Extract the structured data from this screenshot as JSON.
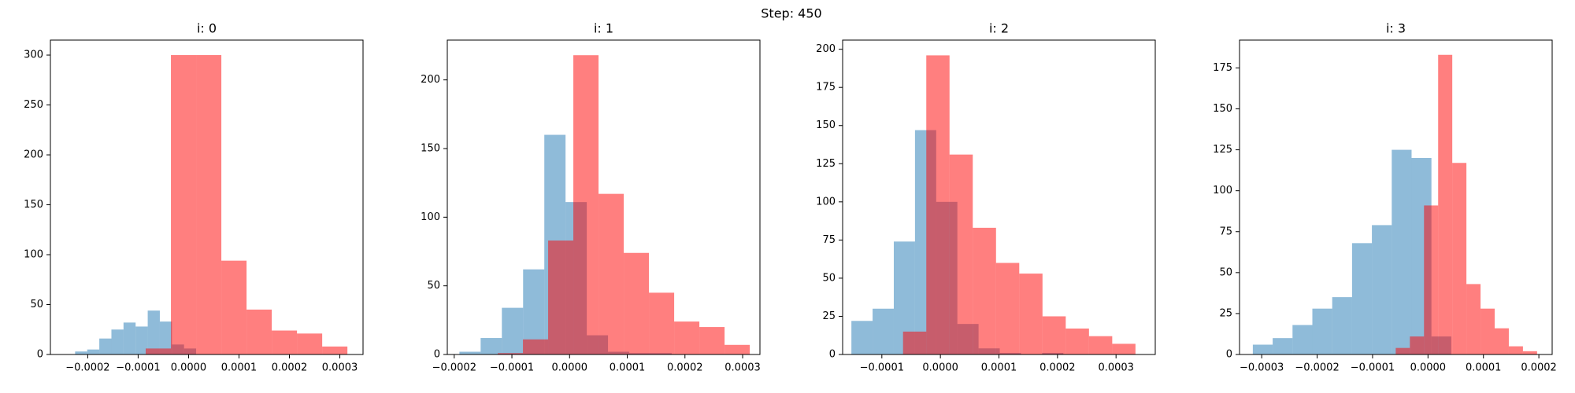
{
  "title": "Step: 450",
  "chart_data": [
    {
      "type": "histogram",
      "title": "i: 0",
      "xlim": [
        -0.000274,
        0.000346
      ],
      "ylim": [
        0,
        315
      ],
      "xticks": [
        {
          "value": -0.0002,
          "label": "−0.0002"
        },
        {
          "value": -0.0001,
          "label": "−0.0001"
        },
        {
          "value": 0,
          "label": "0.0000"
        },
        {
          "value": 0.0001,
          "label": "0.0001"
        },
        {
          "value": 0.0002,
          "label": "0.0002"
        },
        {
          "value": 0.0003,
          "label": "0.0003"
        }
      ],
      "yticks": [
        0,
        50,
        100,
        150,
        200,
        250,
        300
      ],
      "series": [
        {
          "color": "#1f77b4",
          "opacity": 0.5,
          "bins": [
            -0.000225,
            -0.000201,
            -0.000177,
            -0.000153,
            -0.000129,
            -0.000105,
            -8.1e-05,
            -5.7e-05,
            -3.3e-05,
            -9e-06,
            1.5e-05
          ],
          "values": [
            3,
            5,
            16,
            25,
            32,
            28,
            44,
            33,
            10,
            6
          ]
        },
        {
          "color": "#ff0000",
          "opacity": 0.5,
          "bins": [
            -8.5e-05,
            -3.5e-05,
            1.5e-05,
            6.5e-05,
            0.000115,
            0.000165,
            0.000215,
            0.000265,
            0.000315
          ],
          "values": [
            6,
            300,
            300,
            94,
            45,
            24,
            21,
            8
          ]
        }
      ]
    },
    {
      "type": "histogram",
      "title": "i: 1",
      "xlim": [
        -0.000212,
        0.00033
      ],
      "ylim": [
        0,
        229
      ],
      "xticks": [
        {
          "value": -0.0002,
          "label": "−0.0002"
        },
        {
          "value": -0.0001,
          "label": "−0.0001"
        },
        {
          "value": 0,
          "label": "0.0000"
        },
        {
          "value": 0.0001,
          "label": "0.0001"
        },
        {
          "value": 0.0002,
          "label": "0.0002"
        },
        {
          "value": 0.0003,
          "label": "0.0003"
        }
      ],
      "yticks": [
        0,
        50,
        100,
        150,
        200
      ],
      "series": [
        {
          "color": "#1f77b4",
          "opacity": 0.5,
          "bins": [
            -0.000191,
            -0.0001542,
            -0.0001174,
            -8.06e-05,
            -4.38e-05,
            -7e-06,
            2.98e-05,
            6.66e-05,
            0.0001034,
            0.0001402,
            0.000177
          ],
          "values": [
            2,
            12,
            34,
            62,
            160,
            111,
            14,
            2,
            1,
            1
          ]
        },
        {
          "color": "#ff0000",
          "opacity": 0.5,
          "bins": [
            -0.0001246,
            -8.09e-05,
            -3.72e-05,
            6.5e-06,
            5.02e-05,
            9.39e-05,
            0.0001376,
            0.0001813,
            0.000225,
            0.0002687,
            0.0003124
          ],
          "values": [
            1,
            11,
            83,
            218,
            117,
            74,
            45,
            24,
            20,
            7
          ]
        }
      ]
    },
    {
      "type": "histogram",
      "title": "i: 2",
      "xlim": [
        -0.000167,
        0.000367
      ],
      "ylim": [
        0,
        206
      ],
      "xticks": [
        {
          "value": -0.0001,
          "label": "−0.0001"
        },
        {
          "value": 0,
          "label": "0.0000"
        },
        {
          "value": 0.0001,
          "label": "0.0001"
        },
        {
          "value": 0.0002,
          "label": "0.0002"
        },
        {
          "value": 0.0003,
          "label": "0.0003"
        }
      ],
      "yticks": [
        0,
        25,
        50,
        75,
        100,
        125,
        150,
        175,
        200
      ],
      "series": [
        {
          "color": "#1f77b4",
          "opacity": 0.5,
          "bins": [
            -0.000152,
            -0.0001158,
            -7.96e-05,
            -4.34e-05,
            -7.2e-06,
            2.9e-05,
            6.52e-05,
            0.0001014,
            0.0001376,
            0.0001738,
            0.00021
          ],
          "values": [
            22,
            30,
            74,
            147,
            100,
            20,
            4,
            1,
            0,
            1
          ]
        },
        {
          "color": "#ff0000",
          "opacity": 0.5,
          "bins": [
            -6.38e-05,
            -2.41e-05,
            1.56e-05,
            5.53e-05,
            9.5e-05,
            0.0001347,
            0.0001744,
            0.0002141,
            0.0002538,
            0.0002935,
            0.0003332
          ],
          "values": [
            15,
            196,
            131,
            83,
            60,
            53,
            25,
            17,
            12,
            7
          ]
        }
      ]
    },
    {
      "type": "histogram",
      "title": "i: 3",
      "xlim": [
        -0.00034,
        0.000224
      ],
      "ylim": [
        0,
        192
      ],
      "xticks": [
        {
          "value": -0.0003,
          "label": "−0.0003"
        },
        {
          "value": -0.0002,
          "label": "−0.0002"
        },
        {
          "value": -0.0001,
          "label": "−0.0001"
        },
        {
          "value": 0,
          "label": "0.0000"
        },
        {
          "value": 0.0001,
          "label": "0.0001"
        },
        {
          "value": 0.0002,
          "label": "0.0002"
        }
      ],
      "yticks": [
        0,
        25,
        50,
        75,
        100,
        125,
        150,
        175
      ],
      "series": [
        {
          "color": "#1f77b4",
          "opacity": 0.5,
          "bins": [
            -0.000316,
            -0.0002802,
            -0.0002444,
            -0.0002086,
            -0.0001728,
            -0.000137,
            -0.0001012,
            -6.54e-05,
            -2.96e-05,
            6.2e-06,
            4.2e-05
          ],
          "values": [
            6,
            10,
            18,
            28,
            35,
            68,
            79,
            125,
            120,
            11
          ]
        },
        {
          "color": "#ff0000",
          "opacity": 0.5,
          "bins": [
            -5.82e-05,
            -3.27e-05,
            -7.2e-06,
            1.83e-05,
            4.38e-05,
            6.93e-05,
            9.48e-05,
            0.0001203,
            0.0001458,
            0.0001713,
            0.0001968
          ],
          "values": [
            4,
            11,
            91,
            183,
            117,
            43,
            28,
            16,
            5,
            2
          ]
        }
      ]
    }
  ]
}
